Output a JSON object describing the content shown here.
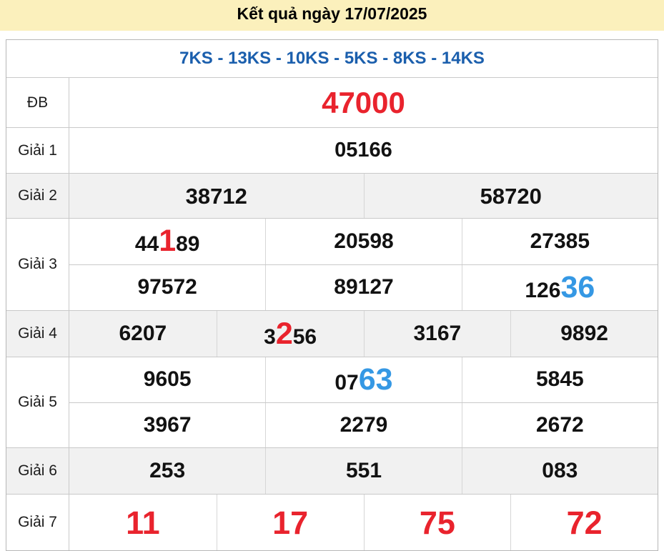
{
  "banner": {
    "title": "Kết quả ngày 17/07/2025"
  },
  "stations": {
    "text": "7KS - 13KS - 10KS - 5KS - 8KS - 14KS"
  },
  "colors": {
    "banner_bg": "#fbf0bc",
    "accent_red": "#e9232d",
    "station_blue": "#1b5fad",
    "highlight_blue": "#3598e4",
    "alt_row_bg": "#f1f1f1",
    "border_gray": "#c9c9c9"
  },
  "prizes": {
    "db": {
      "label": "ĐB",
      "value": "47000"
    },
    "g1": {
      "label": "Giải 1",
      "value": "05166"
    },
    "g2": {
      "label": "Giải 2",
      "v1": "38712",
      "v2": "58720"
    },
    "g3": {
      "label": "Giải 3",
      "r1c1_pre": "44",
      "r1c1_hl": "1",
      "r1c1_post": "89",
      "r1c2": "20598",
      "r1c3": "27385",
      "r2c1": "97572",
      "r2c2": "89127",
      "r2c3_pre": "126",
      "r2c3_hl": "36"
    },
    "g4": {
      "label": "Giải 4",
      "v1": "6207",
      "v2_pre": "3",
      "v2_hl": "2",
      "v2_post": "56",
      "v3": "3167",
      "v4": "9892"
    },
    "g5": {
      "label": "Giải 5",
      "r1c1": "9605",
      "r1c2_pre": "07",
      "r1c2_hl": "63",
      "r1c3": "5845",
      "r2c1": "3967",
      "r2c2": "2279",
      "r2c3": "2672"
    },
    "g6": {
      "label": "Giải 6",
      "v1": "253",
      "v2": "551",
      "v3": "083"
    },
    "g7": {
      "label": "Giải 7",
      "v1": "11",
      "v2": "17",
      "v3": "75",
      "v4": "72"
    }
  }
}
